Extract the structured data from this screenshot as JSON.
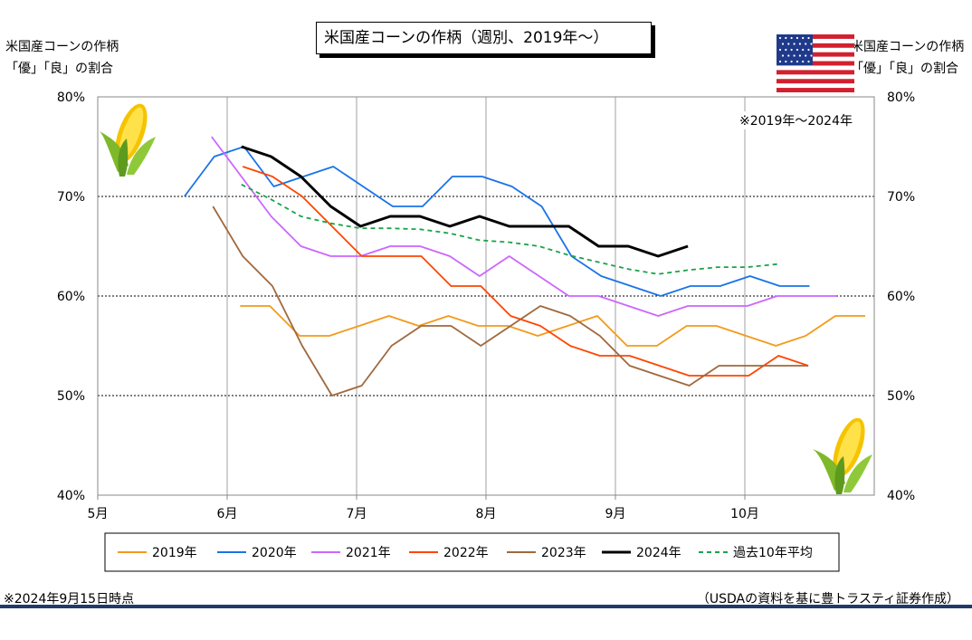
{
  "title": "米国産コーンの作柄（週別、2019年～）",
  "ylabel_left": [
    "米国産コーンの作柄",
    "「優」「良」の割合"
  ],
  "ylabel_right": [
    "米国産コーンの作柄",
    "「優」「良」の割合"
  ],
  "period_note": "※2019年～2024年",
  "footer_left": "※2024年9月15日時点",
  "footer_right": "（USDAの資料を基に豊トラスティ証券作成）",
  "colors": {
    "grid": "#000000",
    "axis": "#888888",
    "footer_bar": "#1f3a6b"
  },
  "icons": [
    "corn-icon",
    "us-flag-icon"
  ],
  "chart_data": {
    "type": "line",
    "x_unit": "month",
    "xlim": [
      5,
      11
    ],
    "ylim": [
      40,
      80
    ],
    "xticks": [
      5,
      6,
      7,
      8,
      9,
      10
    ],
    "xtick_labels": [
      "5月",
      "6月",
      "7月",
      "8月",
      "9月",
      "10月"
    ],
    "yticks": [
      40,
      50,
      60,
      70,
      80
    ],
    "ytick_labels": [
      "40%",
      "50%",
      "60%",
      "70%",
      "80%"
    ],
    "grid": "horizontal dotted at 50/60/70, vertical at months",
    "legend_position": "bottom",
    "series": [
      {
        "name": "2019年",
        "color": "#f39a1c",
        "dash": "solid",
        "x": [
          6.1,
          6.33,
          6.56,
          6.79,
          7.02,
          7.25,
          7.48,
          7.71,
          7.94,
          8.17,
          8.4,
          8.63,
          8.86,
          9.09,
          9.32,
          9.55,
          9.78,
          10.01,
          10.24,
          10.47,
          10.7,
          10.93
        ],
        "y": [
          59,
          59,
          56,
          56,
          57,
          58,
          57,
          58,
          57,
          57,
          56,
          57,
          58,
          55,
          55,
          57,
          57,
          56,
          55,
          56,
          58,
          58
        ]
      },
      {
        "name": "2020年",
        "color": "#1a73e8",
        "dash": "solid",
        "x": [
          5.67,
          5.9,
          6.13,
          6.36,
          6.59,
          6.82,
          7.05,
          7.28,
          7.51,
          7.74,
          7.97,
          8.2,
          8.43,
          8.66,
          8.89,
          9.12,
          9.35,
          9.58,
          9.81,
          10.04,
          10.27,
          10.5
        ],
        "y": [
          70,
          74,
          75,
          71,
          72,
          73,
          71,
          69,
          69,
          72,
          72,
          71,
          69,
          64,
          62,
          61,
          60,
          61,
          61,
          62,
          61,
          61
        ]
      },
      {
        "name": "2021年",
        "color": "#cc66ff",
        "dash": "solid",
        "x": [
          5.88,
          6.11,
          6.34,
          6.57,
          6.8,
          7.03,
          7.26,
          7.49,
          7.72,
          7.95,
          8.18,
          8.41,
          8.64,
          8.87,
          9.1,
          9.33,
          9.56,
          9.79,
          10.02,
          10.25,
          10.48,
          10.71
        ],
        "y": [
          76,
          72,
          68,
          65,
          64,
          64,
          65,
          65,
          64,
          62,
          64,
          62,
          60,
          60,
          59,
          58,
          59,
          59,
          59,
          60,
          60,
          60
        ]
      },
      {
        "name": "2022年",
        "color": "#ff4500",
        "dash": "solid",
        "x": [
          6.12,
          6.35,
          6.58,
          6.81,
          7.04,
          7.27,
          7.5,
          7.73,
          7.96,
          8.19,
          8.42,
          8.65,
          8.88,
          9.11,
          9.34,
          9.57,
          9.8,
          10.03,
          10.26,
          10.49
        ],
        "y": [
          73,
          72,
          70,
          67,
          64,
          64,
          64,
          61,
          61,
          58,
          57,
          55,
          54,
          54,
          53,
          52,
          52,
          52,
          54,
          53
        ]
      },
      {
        "name": "2023年",
        "color": "#a0683c",
        "dash": "solid",
        "x": [
          5.89,
          6.12,
          6.35,
          6.58,
          6.81,
          7.04,
          7.27,
          7.5,
          7.73,
          7.96,
          8.19,
          8.42,
          8.65,
          8.88,
          9.11,
          9.34,
          9.57,
          9.8,
          10.03,
          10.26,
          10.49
        ],
        "y": [
          69,
          64,
          61,
          55,
          50,
          51,
          55,
          57,
          57,
          55,
          57,
          59,
          58,
          56,
          53,
          52,
          51,
          53,
          53,
          53,
          53
        ]
      },
      {
        "name": "2024年",
        "color": "#000000",
        "dash": "solid",
        "bold": true,
        "x": [
          6.11,
          6.34,
          6.57,
          6.8,
          7.03,
          7.26,
          7.49,
          7.72,
          7.95,
          8.18,
          8.41,
          8.64,
          8.87,
          9.1,
          9.33,
          9.56
        ],
        "y": [
          75,
          74,
          72,
          69,
          67,
          68,
          68,
          67,
          68,
          67,
          67,
          67,
          65,
          65,
          64,
          65
        ]
      },
      {
        "name": "過去10年平均",
        "color": "#1aa34a",
        "dash": "dashed",
        "x": [
          6.11,
          6.34,
          6.57,
          6.8,
          7.03,
          7.26,
          7.49,
          7.72,
          7.95,
          8.18,
          8.41,
          8.64,
          8.87,
          9.1,
          9.33,
          9.56,
          9.79,
          10.02,
          10.25
        ],
        "y": [
          71.2,
          69.7,
          68.0,
          67.3,
          66.8,
          66.8,
          66.7,
          66.3,
          65.6,
          65.4,
          65.0,
          64.1,
          63.4,
          62.7,
          62.2,
          62.6,
          62.9,
          62.9,
          63.2
        ]
      }
    ]
  }
}
